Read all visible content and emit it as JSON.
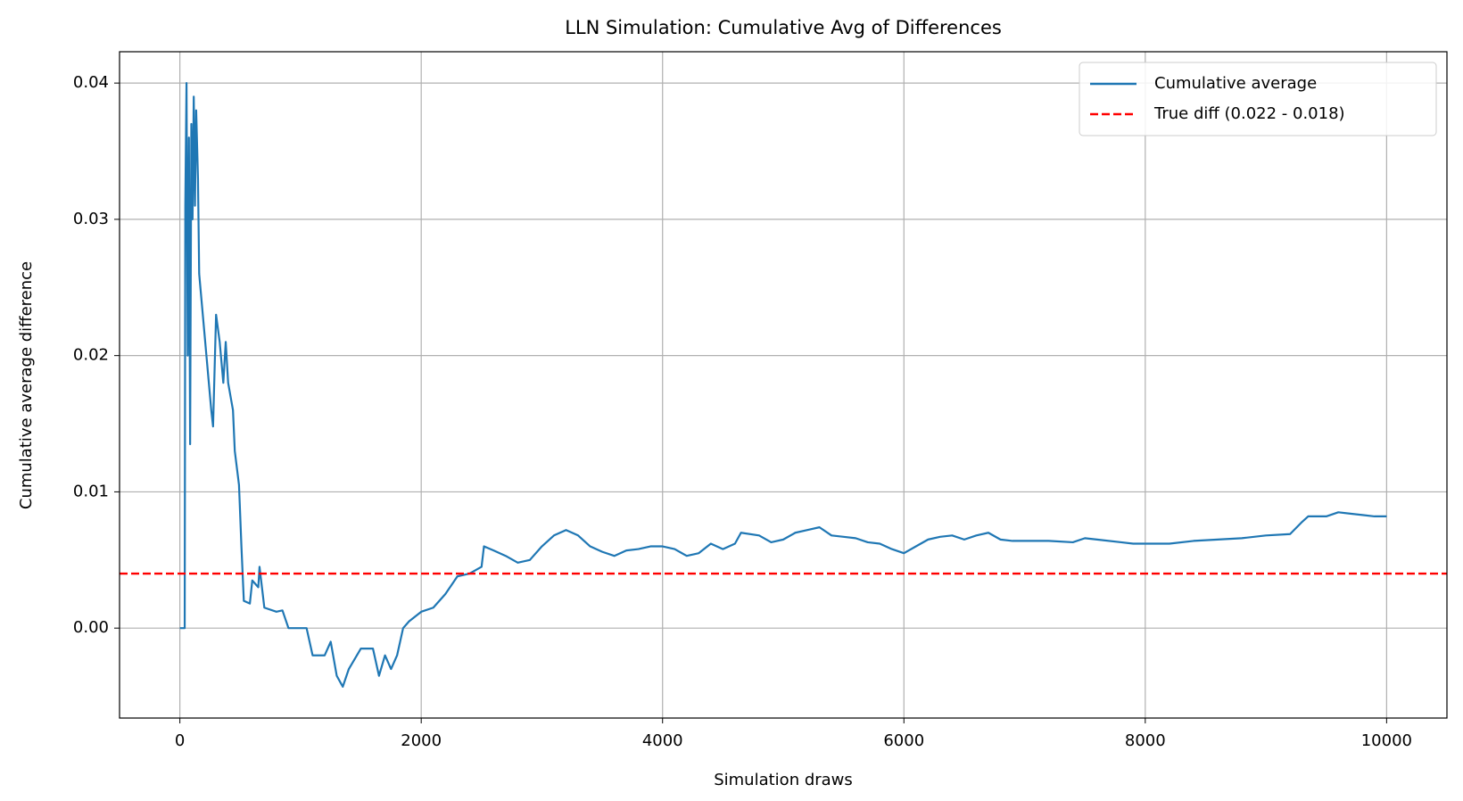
{
  "chart_data": {
    "type": "line",
    "title": "LLN Simulation: Cumulative Avg of Differences",
    "xlabel": "Simulation draws",
    "ylabel": "Cumulative average difference",
    "x": [
      0,
      40,
      45,
      55,
      65,
      75,
      85,
      95,
      105,
      115,
      125,
      135,
      150,
      160,
      200,
      260,
      275,
      300,
      330,
      360,
      380,
      400,
      440,
      455,
      490,
      510,
      530,
      580,
      600,
      650,
      660,
      700,
      800,
      850,
      900,
      1050,
      1100,
      1200,
      1250,
      1300,
      1350,
      1400,
      1500,
      1600,
      1650,
      1700,
      1750,
      1800,
      1850,
      1900,
      2000,
      2100,
      2200,
      2300,
      2400,
      2500,
      2520,
      2600,
      2700,
      2800,
      2900,
      3000,
      3100,
      3200,
      3300,
      3400,
      3500,
      3600,
      3700,
      3800,
      3900,
      4000,
      4100,
      4200,
      4300,
      4400,
      4500,
      4600,
      4650,
      4800,
      4900,
      5000,
      5100,
      5200,
      5300,
      5400,
      5500,
      5600,
      5700,
      5800,
      5900,
      6000,
      6100,
      6200,
      6300,
      6400,
      6500,
      6600,
      6700,
      6800,
      6900,
      7000,
      7200,
      7400,
      7500,
      7600,
      7800,
      7900,
      8000,
      8200,
      8400,
      8600,
      8800,
      9000,
      9200,
      9300,
      9350,
      9500,
      9600,
      9700,
      9800,
      9900,
      10000
    ],
    "series": [
      {
        "name": "Cumulative average",
        "color": "#1f77b4",
        "values": [
          0,
          0,
          0.031,
          0.04,
          0.02,
          0.036,
          0.0135,
          0.037,
          0.03,
          0.039,
          0.031,
          0.038,
          0.033,
          0.026,
          0.022,
          0.016,
          0.0148,
          0.023,
          0.021,
          0.018,
          0.021,
          0.018,
          0.016,
          0.013,
          0.0105,
          0.006,
          0.002,
          0.0018,
          0.0035,
          0.003,
          0.0045,
          0.0015,
          0.0012,
          0.0013,
          0.0,
          0.0,
          -0.002,
          -0.002,
          -0.001,
          -0.0035,
          -0.0043,
          -0.003,
          -0.0015,
          -0.0015,
          -0.0035,
          -0.002,
          -0.003,
          -0.002,
          0,
          0.0005,
          0.0012,
          0.0015,
          0.0025,
          0.0038,
          0.004,
          0.0045,
          0.006,
          0.0057,
          0.0053,
          0.0048,
          0.005,
          0.006,
          0.0068,
          0.0072,
          0.0068,
          0.006,
          0.0056,
          0.0053,
          0.0057,
          0.0058,
          0.006,
          0.006,
          0.0058,
          0.0053,
          0.0055,
          0.0062,
          0.0058,
          0.0062,
          0.007,
          0.0068,
          0.0063,
          0.0065,
          0.007,
          0.0072,
          0.0074,
          0.0068,
          0.0067,
          0.0066,
          0.0063,
          0.0062,
          0.0058,
          0.0055,
          0.006,
          0.0065,
          0.0067,
          0.0068,
          0.0065,
          0.0068,
          0.007,
          0.0065,
          0.0064,
          0.0064,
          0.0064,
          0.0063,
          0.0066,
          0.0065,
          0.0063,
          0.0062,
          0.0062,
          0.0062,
          0.0064,
          0.0065,
          0.0066,
          0.0068,
          0.0069,
          0.0078,
          0.0082,
          0.0082,
          0.0085,
          0.0084,
          0.0083,
          0.0082,
          0.0082
        ]
      }
    ],
    "hlines": [
      {
        "name": "True diff (0.022 - 0.018)",
        "value": 0.004,
        "color": "#ff0000",
        "dash": true
      }
    ],
    "xlim": [
      -500,
      10500
    ],
    "xticks": [
      0,
      2000,
      4000,
      6000,
      8000,
      10000
    ],
    "ylim": [
      -0.0066,
      0.0423
    ],
    "yticks": [
      {
        "value": 0,
        "label": "0.00"
      },
      0.01,
      0.02,
      0.03,
      0.04
    ],
    "grid": true,
    "legend": "upper right"
  }
}
